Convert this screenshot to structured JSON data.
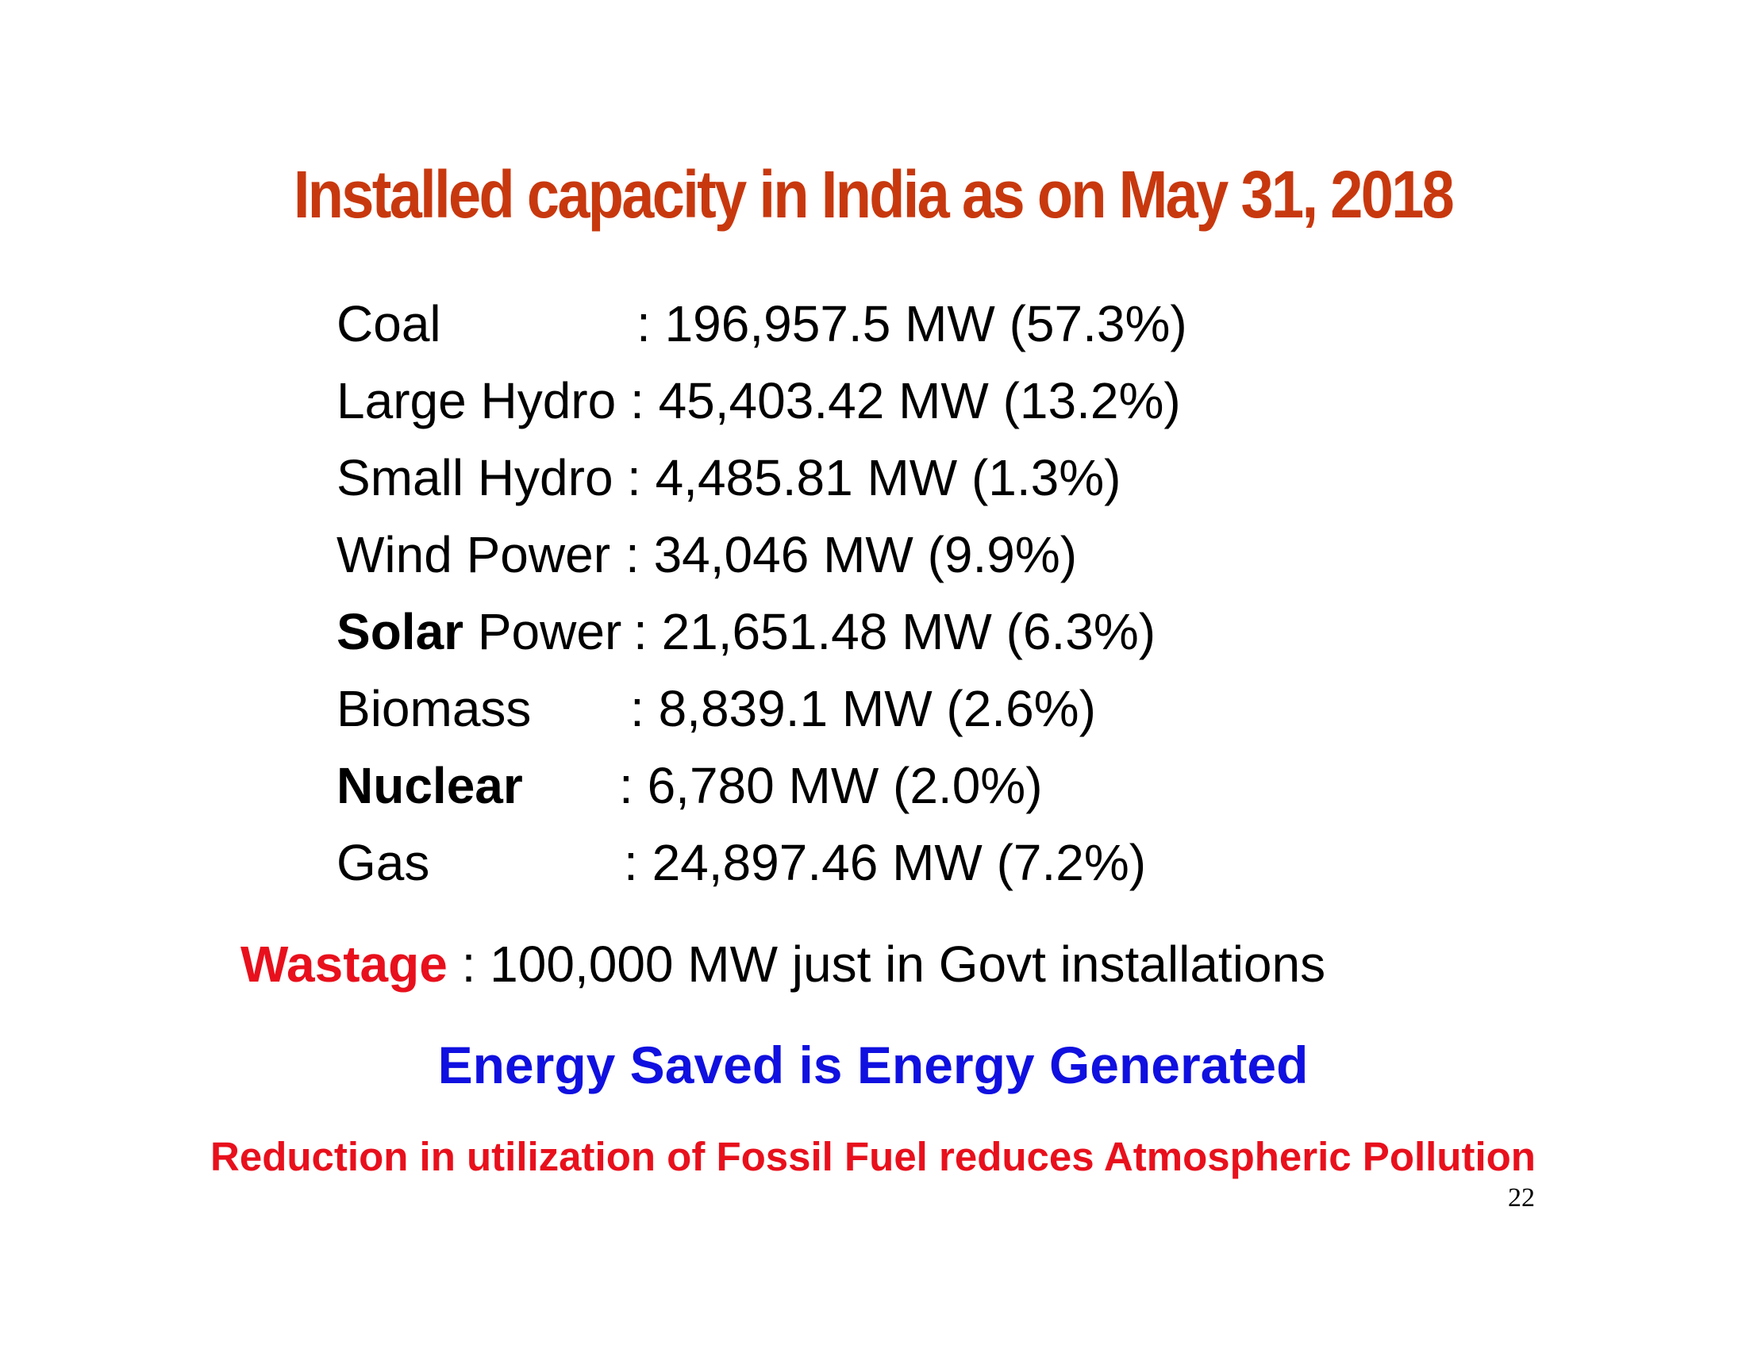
{
  "title": "Installed capacity in India as on May 31, 2018",
  "rows": [
    {
      "label_bold": "",
      "label": "Coal",
      "value": ": 196,957.5 MW (57.3%)"
    },
    {
      "label_bold": "",
      "label": "Large Hydro",
      "value": ": 45,403.42 MW (13.2%)"
    },
    {
      "label_bold": "",
      "label": "Small Hydro",
      "value": ": 4,485.81 MW (1.3%)"
    },
    {
      "label_bold": "",
      "label": "Wind Power",
      "value": ": 34,046 MW (9.9%)"
    },
    {
      "label_bold": "Solar",
      "label": " Power",
      "value": ": 21,651.48 MW (6.3%)"
    },
    {
      "label_bold": "",
      "label": "Biomass",
      "value": ": 8,839.1 MW (2.6%)"
    },
    {
      "label_bold": "Nuclear",
      "label": "",
      "value": ": 6,780 MW (2.0%)"
    },
    {
      "label_bold": "",
      "label": "Gas",
      "value": ": 24,897.46 MW (7.2%)"
    }
  ],
  "wastage": {
    "label": "Wastage",
    "text": " : 100,000 MW just in Govt installations"
  },
  "slogan": "Energy Saved is Energy Generated",
  "reduction": "Reduction in utilization of Fossil Fuel reduces Atmospheric Pollution",
  "page_number": "22",
  "colors": {
    "title": "#c8380e",
    "wastage": "#e8101c",
    "slogan": "#1010e0",
    "reduction": "#e8101c"
  }
}
